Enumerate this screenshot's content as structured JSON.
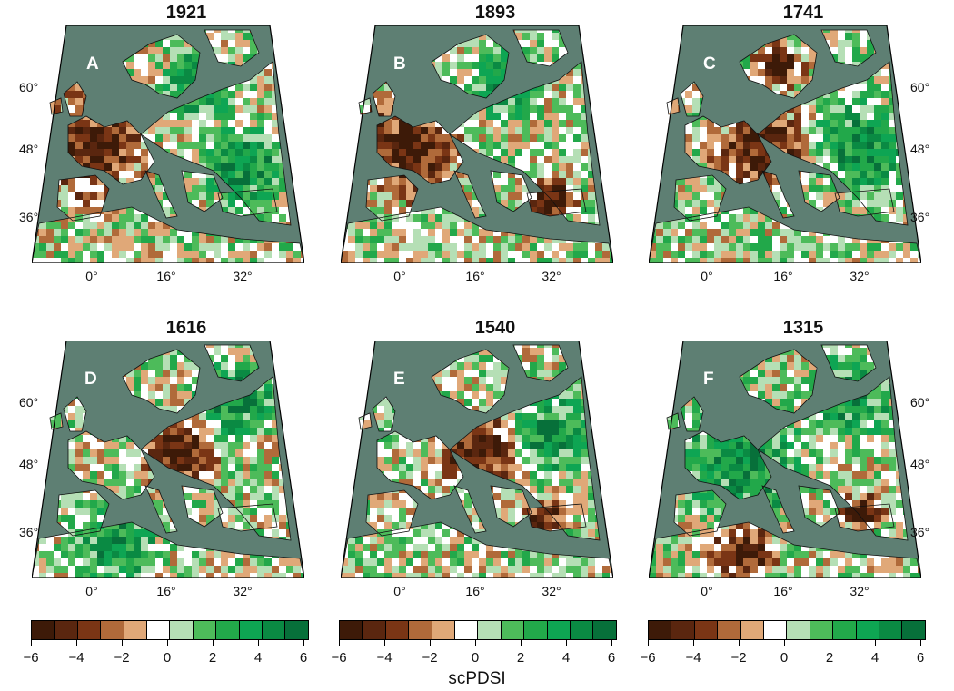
{
  "panels": [
    {
      "year": "1921",
      "letter": "A",
      "lat_side": "left"
    },
    {
      "year": "1893",
      "letter": "B",
      "lat_side": "left"
    },
    {
      "year": "1741",
      "letter": "C",
      "lat_side": "right"
    },
    {
      "year": "1616",
      "letter": "D",
      "lat_side": "left"
    },
    {
      "year": "1540",
      "letter": "E",
      "lat_side": "left"
    },
    {
      "year": "1315",
      "letter": "F",
      "lat_side": "right"
    }
  ],
  "lat_labels": [
    "60°",
    "48°",
    "36°"
  ],
  "lon_labels": [
    "0°",
    "16°",
    "32°"
  ],
  "colorbar": {
    "ticks": [
      "−6",
      "−4",
      "−2",
      "0",
      "2",
      "4",
      "6"
    ],
    "colors": [
      "#3d1a08",
      "#5a260f",
      "#7a3515",
      "#b06a3a",
      "#e0a878",
      "#ffffff",
      "#b5dfb5",
      "#4dbb5a",
      "#22a84a",
      "#0ea553",
      "#0a8a43",
      "#07703a"
    ]
  },
  "xlabel": "scPDSI",
  "colors": {
    "sea": "#5e7f73",
    "map_border": "#111111"
  }
}
